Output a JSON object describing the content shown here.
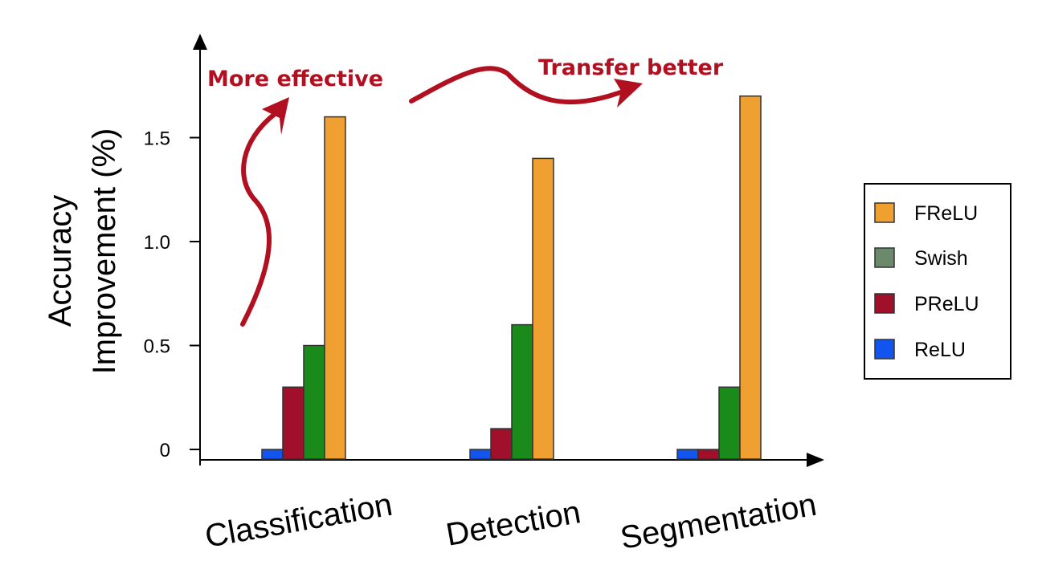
{
  "chart_data": {
    "type": "bar",
    "title": "",
    "xlabel": "",
    "ylabel_lines": [
      "Accuracy",
      "Improvement (%)"
    ],
    "categories": [
      "Classification",
      "Detection",
      "Segmentation"
    ],
    "series": [
      {
        "name": "ReLU",
        "color": "#1155ee",
        "values": [
          0.0,
          0.0,
          0.0
        ]
      },
      {
        "name": "PReLU",
        "color": "#a0102a",
        "values": [
          0.3,
          0.1,
          0.0
        ]
      },
      {
        "name": "Swish",
        "color": "#1a8a1a",
        "values": [
          0.5,
          0.6,
          0.3
        ]
      },
      {
        "name": "FReLU",
        "color": "#f0a030",
        "values": [
          1.6,
          1.4,
          1.7
        ]
      }
    ],
    "yticks": [
      {
        "value": 0,
        "label": "0"
      },
      {
        "value": 0.5,
        "label": "0.5"
      },
      {
        "value": 1.0,
        "label": "1.0"
      },
      {
        "value": 1.5,
        "label": "1.5"
      }
    ],
    "ylim": [
      0,
      1.8
    ],
    "grid": false,
    "legend": {
      "placement": "right",
      "entries": [
        {
          "name": "FReLU",
          "color": "#f0a030"
        },
        {
          "name": "Swish",
          "color": "#6b8a6b"
        },
        {
          "name": "PReLU",
          "color": "#a0102a"
        },
        {
          "name": "ReLU",
          "color": "#1155ee"
        }
      ]
    },
    "annotations": [
      "More effective",
      "Transfer better"
    ],
    "annotation_color": "#b01020"
  }
}
